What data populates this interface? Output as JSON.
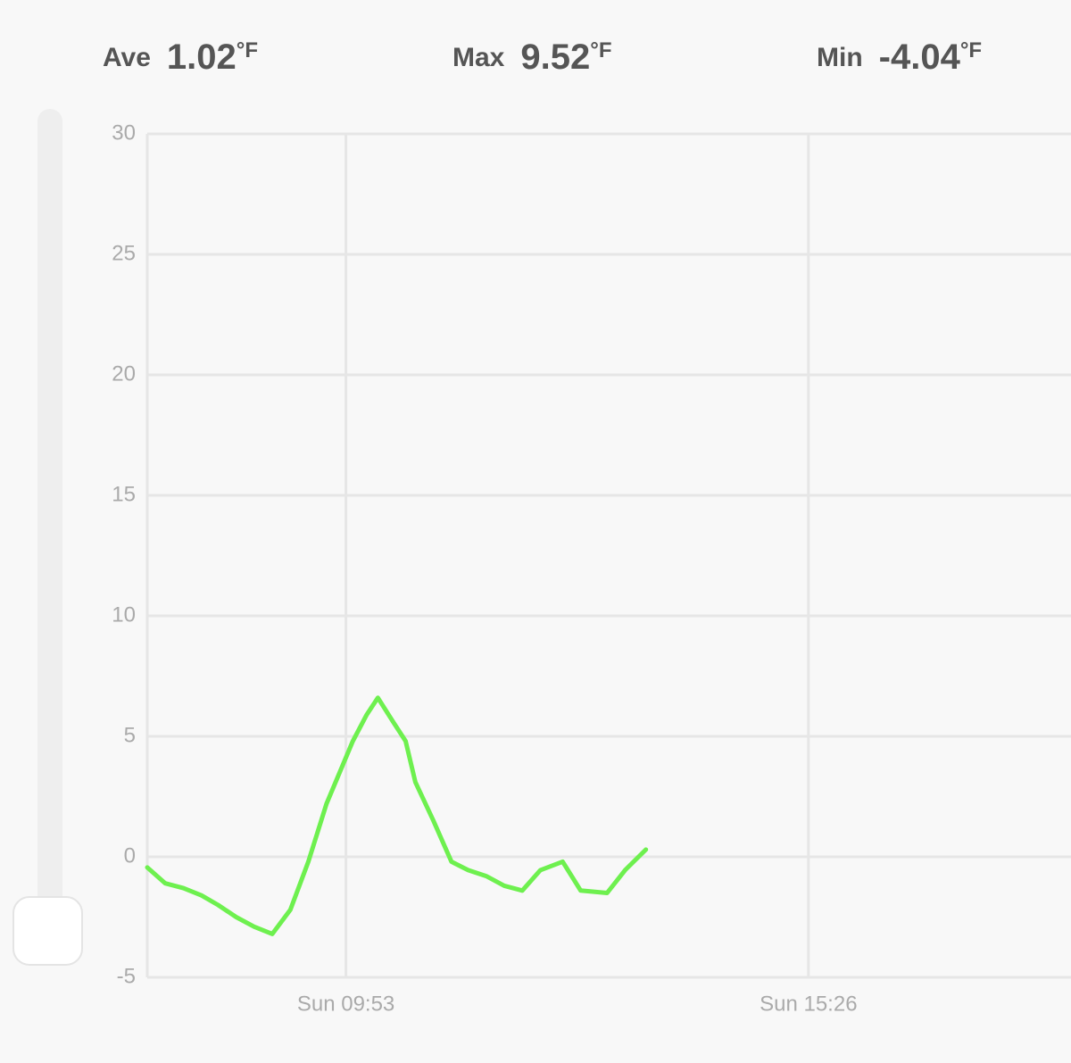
{
  "stats": [
    {
      "label": "Ave",
      "value": "1.02",
      "unit": "°F"
    },
    {
      "label": "Max",
      "value": "9.52",
      "unit": "°F"
    },
    {
      "label": "Min",
      "value": "-4.04",
      "unit": "°F"
    }
  ],
  "chart_data": {
    "type": "line",
    "color": "#6ef04f",
    "x": [
      450,
      463,
      476,
      489,
      501,
      514,
      527,
      540,
      553,
      566,
      579,
      598,
      608,
      616,
      627,
      636,
      643,
      656,
      669,
      681,
      694,
      707,
      720,
      733,
      749,
      762,
      781,
      794,
      809
    ],
    "values": [
      -0.44,
      -1.1,
      -1.3,
      -1.6,
      -2.0,
      -2.5,
      -2.9,
      -3.2,
      -2.2,
      -0.2,
      2.2,
      4.8,
      5.9,
      6.6,
      5.6,
      4.8,
      3.1,
      1.5,
      -0.2,
      -0.55,
      -0.8,
      -1.2,
      -1.4,
      -0.55,
      -0.2,
      -1.4,
      -1.5,
      -0.55,
      0.3
    ],
    "xlim": [
      450,
      1115
    ],
    "xticks": [
      {
        "value": 593,
        "label": "Sun 09:53"
      },
      {
        "value": 926,
        "label": "Sun 15:26"
      }
    ],
    "ylim": [
      -5,
      30
    ],
    "yticks": [
      -5,
      0,
      5,
      10,
      15,
      20,
      25,
      30
    ],
    "grid": true
  }
}
